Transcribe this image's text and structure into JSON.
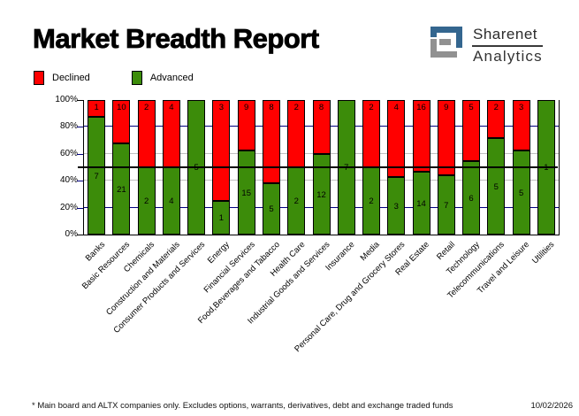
{
  "title": "Market Breadth Report",
  "logo": {
    "name": "Sharenet",
    "division": "Analytics"
  },
  "legend": {
    "declined": "Declined",
    "advanced": "Advanced"
  },
  "footnote": "* Main board and ALTX companies only. Excludes options, warrants, derivatives, debt and exchange traded funds",
  "date": "10/02/2026",
  "colors": {
    "declined": "#ff0000",
    "advanced": "#3c8c0a",
    "grid_navy": "#000080",
    "grid_gray": "#c0c0c0",
    "grid_fifty": "#000000",
    "logo_blue": "#34668f",
    "logo_gray": "#919191"
  },
  "chart_data": {
    "type": "bar",
    "stacked": true,
    "percent_stacked": true,
    "title": "Market Breadth Report",
    "xlabel": "",
    "ylabel": "",
    "ylim": [
      0,
      100
    ],
    "ytick_values": [
      0,
      20,
      40,
      60,
      80,
      100
    ],
    "yticks": [
      "0%",
      "20%",
      "40%",
      "60%",
      "80%",
      "100%"
    ],
    "legend_position": "top-left",
    "gridlines": {
      "navy": [
        20,
        80
      ],
      "gray": [
        40,
        60
      ],
      "black": [
        50
      ]
    },
    "categories": [
      "Banks",
      "Basic Resources",
      "Chemicals",
      "Construction and Materials",
      "Consumer Products and Services",
      "Energy",
      "Financial Services",
      "Food,Beverages and Tabacco",
      "Health Care",
      "Industrial Goods and Services",
      "Insurance",
      "Media",
      "Personal Care, Drug and Grocery Stores",
      "Real Estate",
      "Retail",
      "Technology",
      "Telecommunications",
      "Travel and Leisure",
      "Utilities"
    ],
    "series": [
      {
        "name": "Declined",
        "color": "#ff0000",
        "values": [
          1,
          10,
          2,
          4,
          0,
          3,
          9,
          8,
          2,
          8,
          0,
          2,
          4,
          16,
          9,
          5,
          2,
          3,
          0
        ]
      },
      {
        "name": "Advanced",
        "color": "#3c8c0a",
        "values": [
          7,
          21,
          2,
          4,
          5,
          1,
          15,
          5,
          2,
          12,
          7,
          2,
          3,
          14,
          7,
          6,
          5,
          5,
          1
        ]
      }
    ]
  }
}
